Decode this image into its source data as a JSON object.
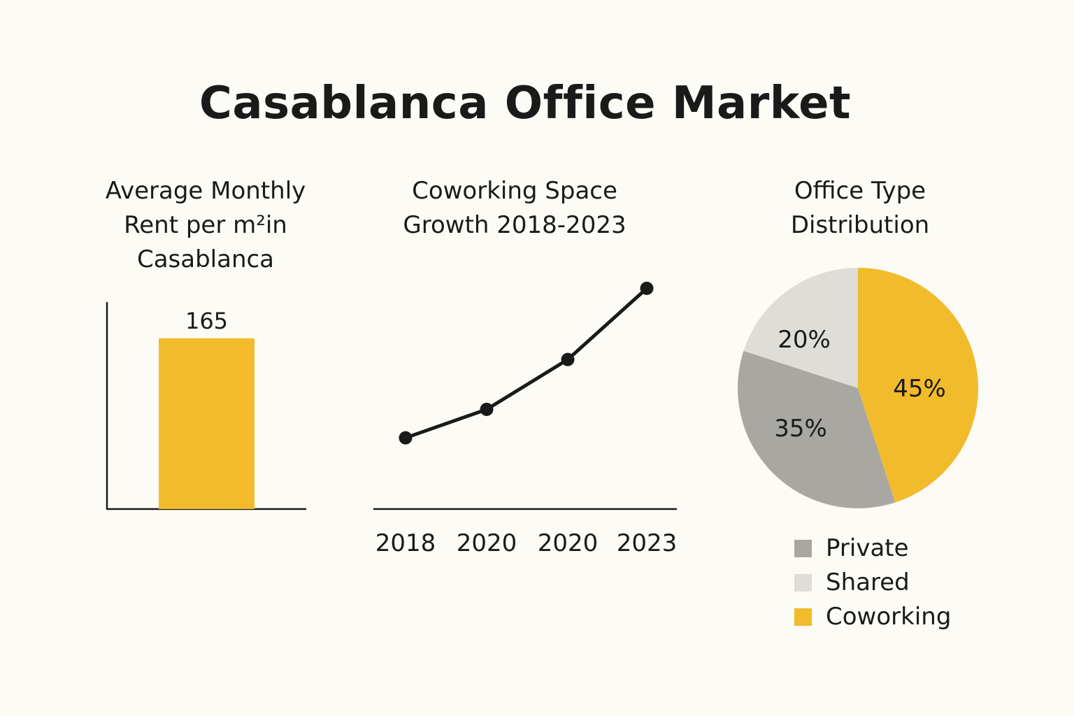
{
  "title": "Casablanca Office Market",
  "colors": {
    "accent": "#f2bb2b",
    "private": "#a8a7a2",
    "shared": "#deddd8",
    "coworking": "#f2bb2b",
    "line": "#1a1a1a",
    "background": "#fcfbf6"
  },
  "chart_data": [
    {
      "type": "bar",
      "title_lines": [
        "Average Monthly",
        "Rent per m²in",
        "Casablanca"
      ],
      "categories": [
        ""
      ],
      "values": [
        165
      ],
      "data_labels": [
        "165"
      ],
      "ylim": [
        0,
        200
      ],
      "grid": false
    },
    {
      "type": "line",
      "title_lines": [
        "Coworking Space",
        "Growth 2018-2023"
      ],
      "x": [
        "2018",
        "2020",
        "2020",
        "2023"
      ],
      "values": [
        1.0,
        1.4,
        2.1,
        3.1
      ],
      "ylim": [
        0,
        3.3
      ],
      "grid": false
    },
    {
      "type": "pie",
      "title_lines": [
        "Office Type",
        "Distribution"
      ],
      "slices": [
        {
          "name": "Coworking",
          "value": 45,
          "label": "45%",
          "color": "#f2bb2b"
        },
        {
          "name": "Private",
          "value": 35,
          "label": "35%",
          "color": "#a8a7a2"
        },
        {
          "name": "Shared",
          "value": 20,
          "label": "20%",
          "color": "#deddd8"
        }
      ],
      "legend": [
        "Private",
        "Shared",
        "Coworking"
      ],
      "legend_placement": "bottom"
    }
  ]
}
